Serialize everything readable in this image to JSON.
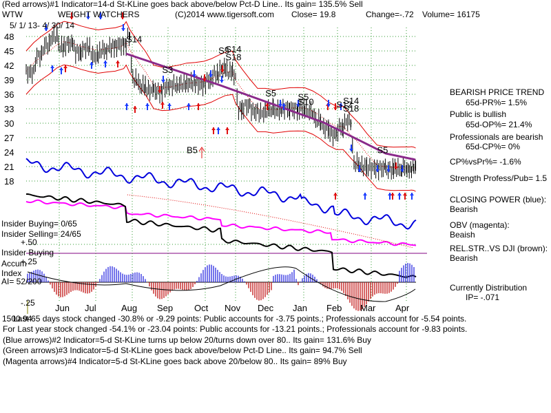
{
  "header": {
    "line1": "(Red arrows)#1 Indicator=14-d St-KLine goes back above/below Pct-D Line.. Its gain= 135.5% Sell",
    "ticker": "WTW",
    "company": "WEIGHT WATCHERS",
    "copyright": "(C)2014 www.tigersoft.com",
    "close": "Close=  19.8",
    "change": "Change=-.72",
    "volume": "Volume= 16175",
    "date_range": "5/ 1/ 13- 4/ 30/ 14"
  },
  "chart_data": {
    "type": "line",
    "title": "WEIGHT WATCHERS",
    "y_tick_labels": [
      "48",
      "45",
      "42",
      "39",
      "36",
      "33",
      "30",
      "27",
      "24",
      "21",
      "18"
    ],
    "y_ticks": [
      48,
      45,
      42,
      39,
      36,
      33,
      30,
      27,
      24,
      21,
      18
    ],
    "x_tick_labels": [
      "Jun",
      "Jul",
      "Aug",
      "Sep",
      "Oct",
      "Nov",
      "Dec",
      "Jan",
      "Feb",
      "Mar",
      "Apr"
    ],
    "price_close_series": [
      {
        "d": "May 1",
        "v": 40.5
      },
      {
        "d": "May 8",
        "v": 44.0
      },
      {
        "d": "May 15",
        "v": 46.2
      },
      {
        "d": "May 22",
        "v": 48.0
      },
      {
        "d": "May 29",
        "v": 45.8
      },
      {
        "d": "Jun 5",
        "v": 46.5
      },
      {
        "d": "Jun 12",
        "v": 44.8
      },
      {
        "d": "Jun 19",
        "v": 45.6
      },
      {
        "d": "Jun 26",
        "v": 43.9
      },
      {
        "d": "Jul 3",
        "v": 45.2
      },
      {
        "d": "Jul 10",
        "v": 45.8
      },
      {
        "d": "Jul 17",
        "v": 46.3
      },
      {
        "d": "Jul 24",
        "v": 46.0
      },
      {
        "d": "Jul 26",
        "v": 48.2
      },
      {
        "d": "Jul 29",
        "v": 39.1
      },
      {
        "d": "Aug 5",
        "v": 37.6
      },
      {
        "d": "Aug 12",
        "v": 36.8
      },
      {
        "d": "Aug 19",
        "v": 36.6
      },
      {
        "d": "Aug 26",
        "v": 37.5
      },
      {
        "d": "Sep 2",
        "v": 37.9
      },
      {
        "d": "Sep 9",
        "v": 38.1
      },
      {
        "d": "Sep 16",
        "v": 38.4
      },
      {
        "d": "Sep 23",
        "v": 38.0
      },
      {
        "d": "Sep 30",
        "v": 38.9
      },
      {
        "d": "Oct 7",
        "v": 40.2
      },
      {
        "d": "Oct 14",
        "v": 41.3
      },
      {
        "d": "Oct 21",
        "v": 40.6
      },
      {
        "d": "Oct 28",
        "v": 39.8
      },
      {
        "d": "Oct 31",
        "v": 32.8
      },
      {
        "d": "Nov 7",
        "v": 33.6
      },
      {
        "d": "Nov 14",
        "v": 32.4
      },
      {
        "d": "Nov 21",
        "v": 32.1
      },
      {
        "d": "Nov 28",
        "v": 32.8
      },
      {
        "d": "Dec 5",
        "v": 32.6
      },
      {
        "d": "Dec 12",
        "v": 33.1
      },
      {
        "d": "Dec 19",
        "v": 32.9
      },
      {
        "d": "Dec 26",
        "v": 33.0
      },
      {
        "d": "Jan 2",
        "v": 32.4
      },
      {
        "d": "Jan 9",
        "v": 30.5
      },
      {
        "d": "Jan 16",
        "v": 28.9
      },
      {
        "d": "Jan 23",
        "v": 27.6
      },
      {
        "d": "Jan 30",
        "v": 29.2
      },
      {
        "d": "Feb 6",
        "v": 30.4
      },
      {
        "d": "Feb 13",
        "v": 21.6
      },
      {
        "d": "Feb 20",
        "v": 20.9
      },
      {
        "d": "Feb 27",
        "v": 20.7
      },
      {
        "d": "Mar 6",
        "v": 20.6
      },
      {
        "d": "Mar 13",
        "v": 20.4
      },
      {
        "d": "Mar 20",
        "v": 20.5
      },
      {
        "d": "Mar 27",
        "v": 20.8
      },
      {
        "d": "Apr 3",
        "v": 20.6
      },
      {
        "d": "Apr 10",
        "v": 20.4
      },
      {
        "d": "Apr 17",
        "v": 20.7
      },
      {
        "d": "Apr 24",
        "v": 20.5
      },
      {
        "d": "Apr 30",
        "v": 19.8
      }
    ],
    "signal_labels": [
      {
        "text": "S14",
        "d": "Jul 26",
        "v": 46.8
      },
      {
        "text": "S3",
        "d": "Aug 26",
        "v": 40.4
      },
      {
        "text": "S5",
        "d": "Oct 14",
        "v": 44.4
      },
      {
        "text": "S14",
        "d": "Oct 21",
        "v": 44.7
      },
      {
        "text": "S18",
        "d": "Oct 21",
        "v": 43.1
      },
      {
        "text": "S5",
        "d": "Nov 28",
        "v": 35.6
      },
      {
        "text": "S5",
        "d": "Dec 26",
        "v": 34.8
      },
      {
        "text": "S10",
        "d": "Dec 26",
        "v": 33.8
      },
      {
        "text": "S14",
        "d": "Feb 6",
        "v": 34.0
      },
      {
        "text": "S12",
        "d": "Jan 30",
        "v": 33.2
      },
      {
        "text": "S18",
        "d": "Feb 6",
        "v": 32.4
      },
      {
        "text": "S5",
        "d": "Mar 6",
        "v": 23.8
      },
      {
        "text": "B5",
        "d": "Sep 16",
        "v": 23.8
      }
    ],
    "accum_index_labels": {
      "title": "Accum",
      "sub": "Index",
      "value": "AI= 52/200",
      "top": "+.50",
      "mid": "+.25",
      "bottom": "-.25"
    },
    "insider_buying_label": "Insider Buying"
  },
  "right_panel": {
    "bearish_trend": "BEARISH PRICE TREND",
    "pr": "65d-PR%= 1.5%",
    "public_bullish": "Public is bullish",
    "op": "65d-OP%= 21.4%",
    "pros_bearish": "Professionals are bearish",
    "cp": "65d-CP%= 0%",
    "cpvspr": "CP%vsPr%= -1.6%",
    "strength": "Strength Profess/Pub= 1.5",
    "closing_power": "CLOSING POWER (blue):",
    "closing_power_val": "Bearish",
    "obv": "OBV (magenta):",
    "obv_val": "Beaish",
    "relstr": "REL.STR..VS DJI (brown):",
    "relstr_val": "Bearish",
    "currently": "Currently Distribution",
    "ip": "IP= -.071"
  },
  "insider": {
    "buying": "Insider Buying= 0/65",
    "selling": "Insider Selling= 24/65"
  },
  "footer": {
    "line1": "Last 65 days stock changed -30.8% or -9.29 points:  Public accounts for -3.75 points.;  Professionals account for -5.54 points.",
    "line1_overlap": "1500.94",
    "line2": "For Last year stock changed -54.1% or -23.04 points:  Public accounts for -13.21 points.;  Professionals account for -9.83 points.",
    "line3": "(Blue arrows)#2 Indicator=5-d St-KLine turns up below 20/turns down over 80.. Its gain= 131.6% Buy",
    "line4": "(Green arrows)#3 Indicator=5-d St-KLine goes back above/below Pct-D Line.. Its gain= 94.7% Sell",
    "line5": "(Magenta arrows)#4 Indicator=5-d St-KLine goes back above 20/below 80.. Its gain= 89% Buy"
  },
  "colors": {
    "grid": "#2e9a2e",
    "price": "#000000",
    "bands": "#e00000",
    "trend": "#8a2a8a",
    "closing_power": "#0000dd",
    "obv": "#ff00ff",
    "relstr": "#000000",
    "accum_pos": "#2a2ae0",
    "accum_neg": "#c01010",
    "red_arrow": "#e01010",
    "blue_arrow": "#1a3cff"
  }
}
